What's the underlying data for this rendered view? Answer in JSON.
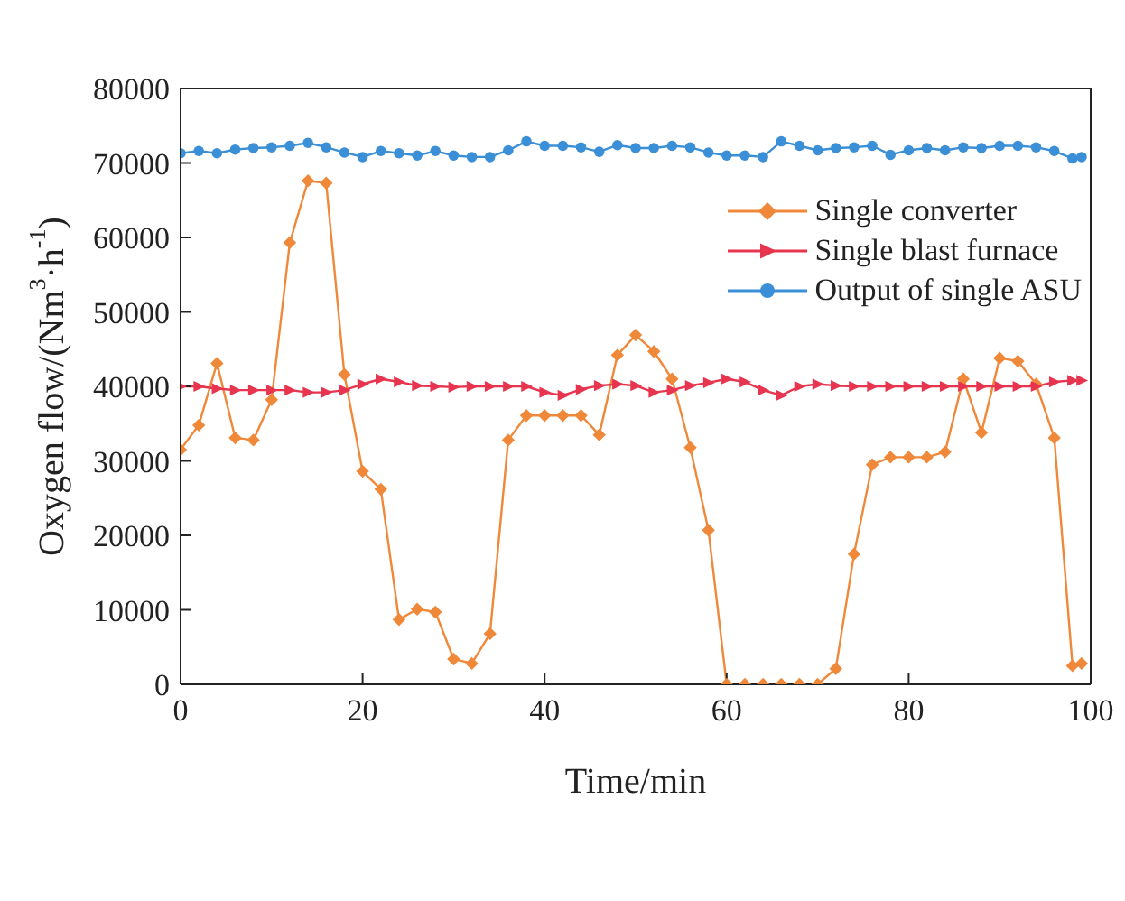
{
  "chart_data": {
    "type": "line",
    "xlabel": "Time/min",
    "ylabel": "Oxygen flow/(Nm$^{3}$·h$^{-1}$)",
    "xlim": [
      0,
      100
    ],
    "xticks": [
      0,
      20,
      40,
      60,
      80,
      100
    ],
    "ylim": [
      0,
      80000
    ],
    "yticks": [
      0,
      10000,
      20000,
      30000,
      40000,
      50000,
      60000,
      70000,
      80000
    ],
    "grid": false,
    "legend": "top right",
    "x": [
      0,
      2,
      4,
      6,
      8,
      10,
      12,
      14,
      16,
      18,
      20,
      22,
      24,
      26,
      28,
      30,
      32,
      34,
      36,
      38,
      40,
      42,
      44,
      46,
      48,
      50,
      52,
      54,
      56,
      58,
      60,
      62,
      64,
      66,
      68,
      70,
      72,
      74,
      76,
      78,
      80,
      82,
      84,
      86,
      88,
      90,
      92,
      94,
      96,
      98,
      99
    ],
    "series": [
      {
        "name": "Single converter",
        "color": "#f0883a",
        "marker": "diamond",
        "values": [
          31500,
          34800,
          43100,
          33100,
          32800,
          38200,
          59300,
          67600,
          67300,
          41600,
          28600,
          26200,
          8700,
          10100,
          9700,
          3400,
          2800,
          6800,
          32800,
          36100,
          36100,
          36100,
          36100,
          33500,
          44200,
          46900,
          44700,
          41000,
          31800,
          20700,
          0,
          0,
          0,
          0,
          0,
          0,
          2100,
          17500,
          29500,
          30500,
          30500,
          30500,
          31200,
          41000,
          33800,
          43800,
          43400,
          40300,
          33100,
          2500,
          2800
        ]
      },
      {
        "name": "Single blast furnace",
        "color": "#e8354f",
        "marker": "triangle",
        "values": [
          40000,
          40000,
          39700,
          39500,
          39500,
          39500,
          39500,
          39200,
          39200,
          39500,
          40300,
          41000,
          40600,
          40100,
          40000,
          39900,
          40000,
          40000,
          40000,
          40000,
          39200,
          38800,
          39600,
          40100,
          40300,
          40100,
          39200,
          39500,
          40100,
          40500,
          41000,
          40600,
          39500,
          38800,
          40000,
          40300,
          40100,
          40000,
          40000,
          40000,
          40000,
          40000,
          40000,
          40000,
          40000,
          40000,
          40000,
          40000,
          40600,
          40800,
          40800
        ]
      },
      {
        "name": "Output of single ASU",
        "color": "#3a8fd6",
        "marker": "circle",
        "values": [
          71300,
          71600,
          71300,
          71800,
          72000,
          72100,
          72300,
          72700,
          72100,
          71400,
          70800,
          71600,
          71300,
          71000,
          71600,
          71000,
          70800,
          70800,
          71700,
          72900,
          72300,
          72300,
          72100,
          71500,
          72400,
          72000,
          72000,
          72300,
          72100,
          71400,
          71000,
          71000,
          70800,
          72900,
          72300,
          71700,
          72000,
          72100,
          72300,
          71100,
          71700,
          72000,
          71700,
          72100,
          72000,
          72300,
          72300,
          72100,
          71600,
          70600,
          70800
        ]
      }
    ]
  }
}
